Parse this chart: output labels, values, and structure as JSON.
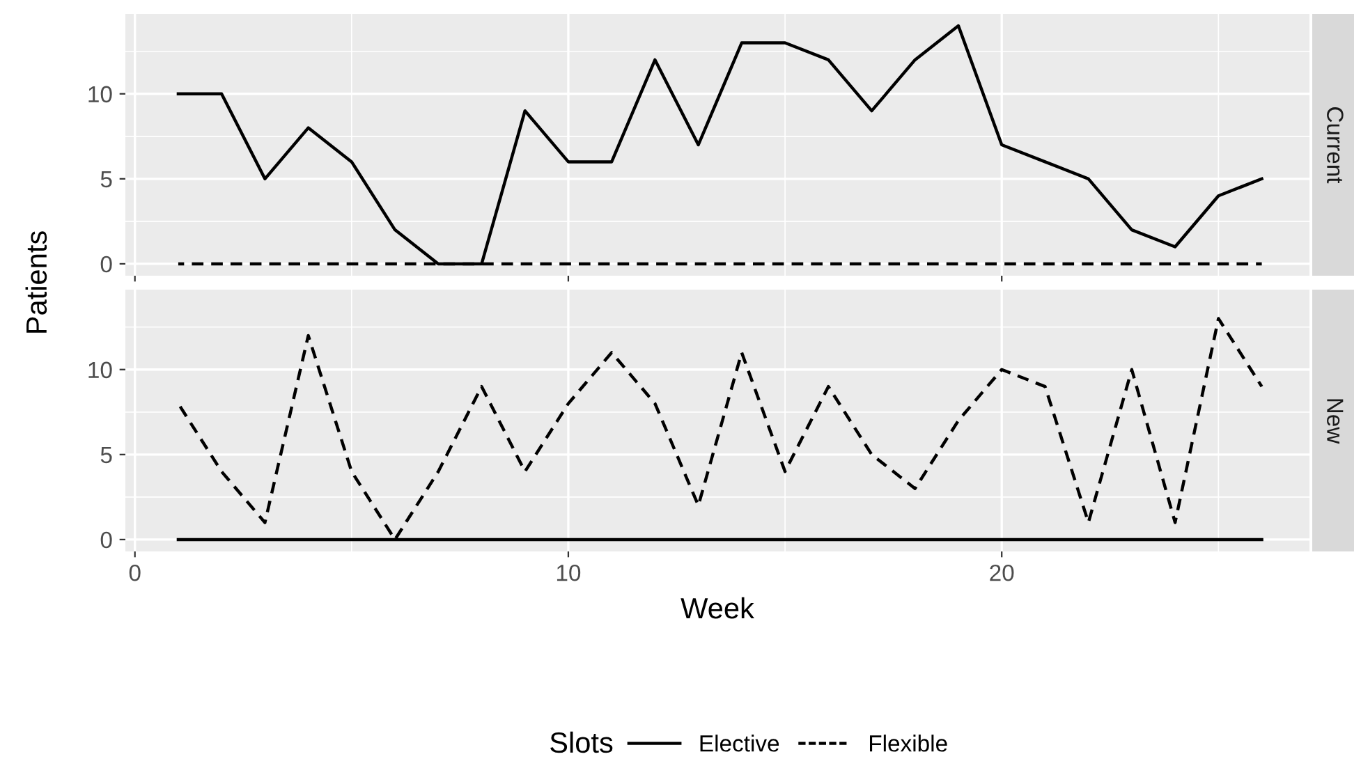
{
  "chart_data": [
    {
      "type": "line",
      "annotations": [
        "Current"
      ],
      "ylabel": "Patients",
      "x": [
        1,
        2,
        3,
        4,
        5,
        6,
        7,
        8,
        9,
        10,
        11,
        12,
        13,
        14,
        15,
        16,
        17,
        18,
        19,
        20,
        21,
        22,
        23,
        24,
        25,
        26
      ],
      "series": [
        {
          "color": "#000000",
          "line_style": "solid",
          "values": [
            10,
            10,
            5,
            8,
            6,
            2,
            0,
            0,
            9,
            6,
            6,
            12,
            7,
            13,
            13,
            12,
            9,
            12,
            14,
            7,
            6,
            5,
            2,
            1,
            4,
            5
          ]
        },
        {
          "color": "#000000",
          "line_style": "dashed",
          "values": [
            0,
            0,
            0,
            0,
            0,
            0,
            0,
            0,
            0,
            0,
            0,
            0,
            0,
            0,
            0,
            0,
            0,
            0,
            0,
            0,
            0,
            0,
            0,
            0,
            0,
            0
          ]
        }
      ],
      "xlim": [
        -0.22,
        27.1
      ],
      "xticks": [
        0,
        10,
        20
      ],
      "ylim": [
        -0.7,
        14.7
      ],
      "yticks": [
        0,
        5,
        10
      ],
      "grid": true,
      "tick_labels": "y"
    },
    {
      "type": "line",
      "annotations": [
        "New"
      ],
      "xlabel": "Week",
      "legend_title": "Slots",
      "x": [
        1,
        2,
        3,
        4,
        5,
        6,
        7,
        8,
        9,
        10,
        11,
        12,
        13,
        14,
        15,
        16,
        17,
        18,
        19,
        20,
        21,
        22,
        23,
        24,
        25,
        26
      ],
      "series": [
        {
          "name": "Elective",
          "color": "#000000",
          "line_style": "solid",
          "values": [
            0,
            0,
            0,
            0,
            0,
            0,
            0,
            0,
            0,
            0,
            0,
            0,
            0,
            0,
            0,
            0,
            0,
            0,
            0,
            0,
            0,
            0,
            0,
            0,
            0,
            0
          ]
        },
        {
          "name": "Flexible",
          "color": "#000000",
          "line_style": "dashed",
          "values": [
            8,
            4,
            1,
            12,
            4,
            0,
            4,
            9,
            4,
            8,
            11,
            8,
            2,
            11,
            4,
            9,
            5,
            3,
            7,
            10,
            9,
            1,
            10,
            1,
            13,
            9
          ]
        }
      ],
      "xlim": [
        -0.22,
        27.1
      ],
      "xticks": [
        0,
        10,
        20
      ],
      "ylim": [
        -0.7,
        14.7
      ],
      "yticks": [
        0,
        5,
        10
      ],
      "grid": true,
      "legend": "bottom"
    }
  ]
}
